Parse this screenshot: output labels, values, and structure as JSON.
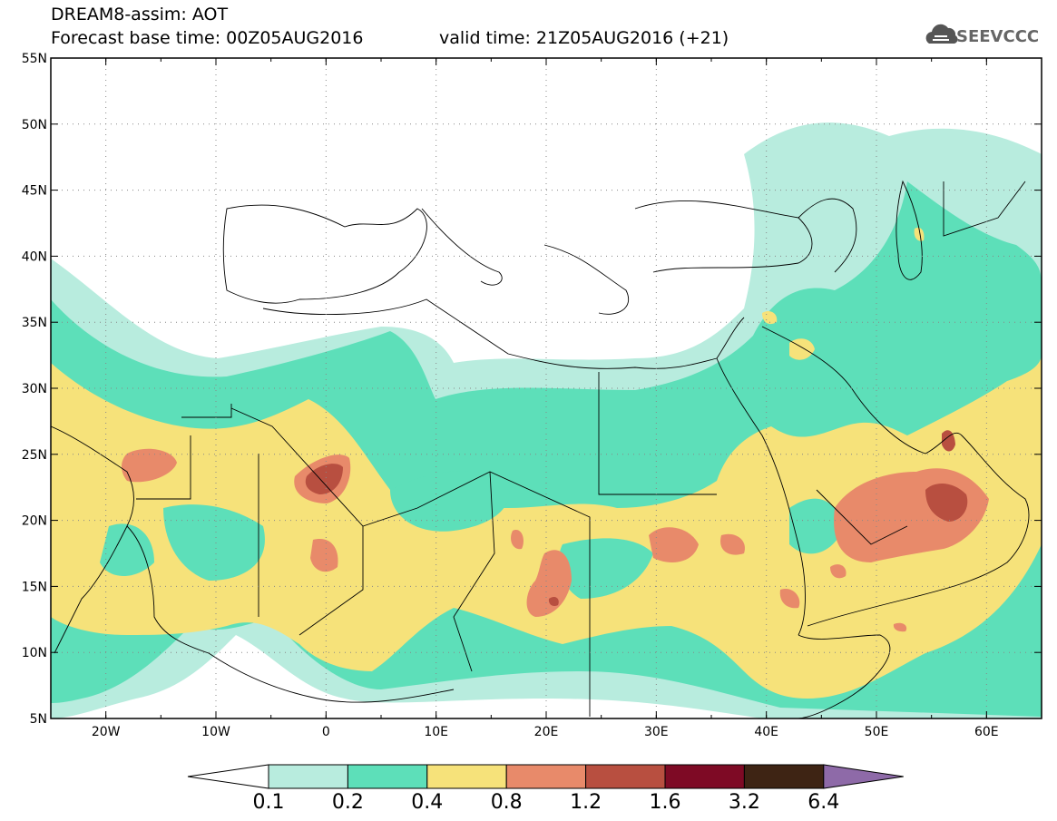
{
  "header": {
    "title": "DREAM8-assim: AOT",
    "base_time": "Forecast base time: 00Z05AUG2016",
    "valid_time": "valid time: 21Z05AUG2016 (+21)",
    "logo_text": "SEEVCCC"
  },
  "map": {
    "lon_range": [
      -25,
      65
    ],
    "lat_range": [
      5,
      55
    ],
    "lat_labels": [
      "5N",
      "10N",
      "15N",
      "20N",
      "25N",
      "30N",
      "35N",
      "40N",
      "45N",
      "50N",
      "55N"
    ],
    "lat_values": [
      5,
      10,
      15,
      20,
      25,
      30,
      35,
      40,
      45,
      50,
      55
    ],
    "lon_labels": [
      "20W",
      "10W",
      "0",
      "10E",
      "20E",
      "30E",
      "40E",
      "50E",
      "60E"
    ],
    "lon_values": [
      -20,
      -10,
      0,
      10,
      20,
      30,
      40,
      50,
      60
    ],
    "grid": "dotted"
  },
  "legend": {
    "levels": [
      "0.1",
      "0.2",
      "0.4",
      "0.8",
      "1.2",
      "1.6",
      "3.2",
      "6.4"
    ],
    "colors": [
      "#ffffff",
      "#b8ecde",
      "#5ddfb9",
      "#f6e27a",
      "#e88a6a",
      "#b84f40",
      "#7e0a25",
      "#3e2414",
      "#8e6aa8"
    ]
  }
}
